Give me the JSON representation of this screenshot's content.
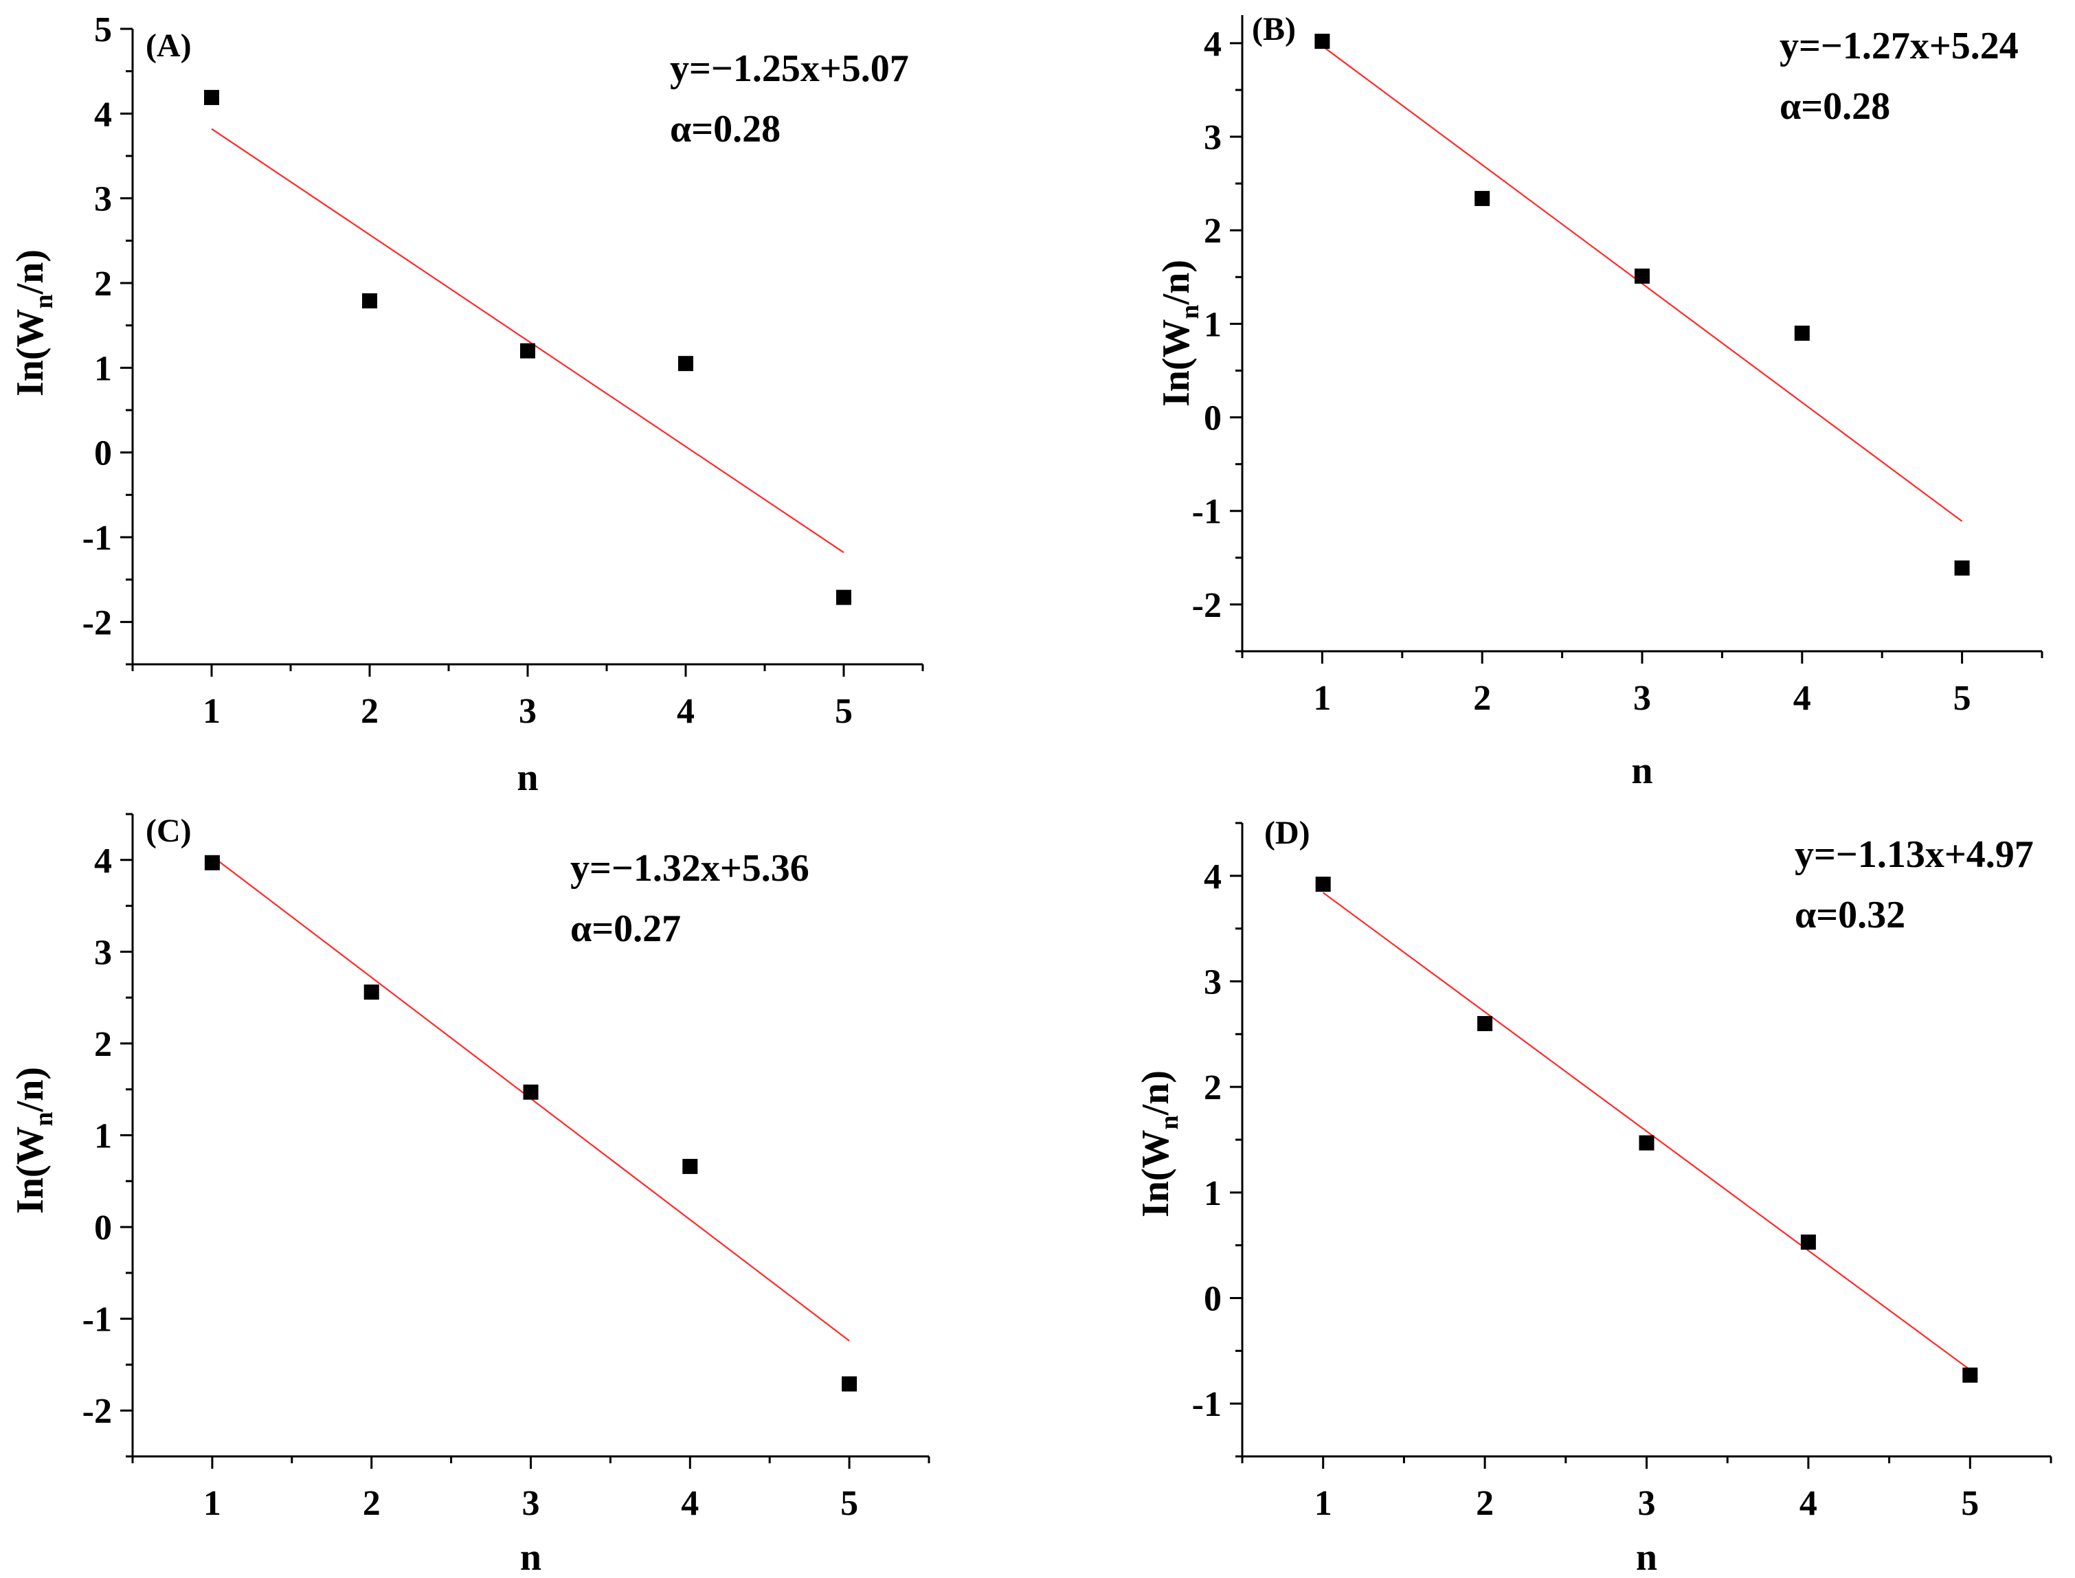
{
  "chart_data": [
    {
      "type": "scatter",
      "panel_label": "(A)",
      "xlabel": "n",
      "ylabel_main": "In(W",
      "ylabel_sub": "n",
      "ylabel_tail": "/n)",
      "x": [
        1,
        2,
        3,
        4,
        5
      ],
      "y": [
        4.19,
        1.79,
        1.2,
        1.05,
        -1.71
      ],
      "fit": {
        "slope": -1.25,
        "intercept": 5.07,
        "x_range": [
          1,
          5
        ]
      },
      "annotation_lines": [
        "y=−1.25x+5.07",
        "α=0.28"
      ],
      "xlim": [
        0.5,
        5.5
      ],
      "ylim": [
        -2.5,
        5
      ],
      "xticks": [
        1,
        2,
        3,
        4,
        5
      ],
      "yticks": [
        -2,
        -1,
        0,
        1,
        2,
        3,
        4,
        5
      ],
      "grid": false,
      "marker_color": "#000000",
      "fit_color": "#ff2a2a"
    },
    {
      "type": "scatter",
      "panel_label": "(B)",
      "xlabel": "n",
      "ylabel_main": "In(W",
      "ylabel_sub": "n",
      "ylabel_tail": "/n)",
      "x": [
        1,
        2,
        3,
        4,
        5
      ],
      "y": [
        4.02,
        2.34,
        1.51,
        0.9,
        -1.61
      ],
      "fit": {
        "slope": -1.27,
        "intercept": 5.24,
        "x_range": [
          1,
          5
        ]
      },
      "annotation_lines": [
        "y=−1.27x+5.24",
        "α=0.28"
      ],
      "xlim": [
        0.5,
        5.5
      ],
      "ylim": [
        -2.5,
        4.3
      ],
      "xticks": [
        1,
        2,
        3,
        4,
        5
      ],
      "yticks": [
        -2,
        -1,
        0,
        1,
        2,
        3,
        4
      ],
      "grid": false,
      "marker_color": "#000000",
      "fit_color": "#ff2a2a"
    },
    {
      "type": "scatter",
      "panel_label": "(C)",
      "xlabel": "n",
      "ylabel_main": "In(W",
      "ylabel_sub": "n",
      "ylabel_tail": "/n)",
      "x": [
        1,
        2,
        3,
        4,
        5
      ],
      "y": [
        3.97,
        2.56,
        1.47,
        0.66,
        -1.71
      ],
      "fit": {
        "slope": -1.32,
        "intercept": 5.36,
        "x_range": [
          1,
          5
        ]
      },
      "annotation_lines": [
        "y=−1.32x+5.36",
        "α=0.27"
      ],
      "xlim": [
        0.5,
        5.5
      ],
      "ylim": [
        -2.5,
        4.5
      ],
      "xticks": [
        1,
        2,
        3,
        4,
        5
      ],
      "yticks": [
        -2,
        -1,
        0,
        1,
        2,
        3,
        4
      ],
      "grid": false,
      "marker_color": "#000000",
      "fit_color": "#ff2a2a"
    },
    {
      "type": "scatter",
      "panel_label": "(D)",
      "xlabel": "n",
      "ylabel_main": "In(W",
      "ylabel_sub": "n",
      "ylabel_tail": "/n)",
      "x": [
        1,
        2,
        3,
        4,
        5
      ],
      "y": [
        3.92,
        2.6,
        1.47,
        0.53,
        -0.73
      ],
      "fit": {
        "slope": -1.13,
        "intercept": 4.97,
        "x_range": [
          1,
          5
        ]
      },
      "annotation_lines": [
        "y=−1.13x+4.97",
        "α=0.32"
      ],
      "xlim": [
        0.5,
        5.5
      ],
      "ylim": [
        -1.5,
        4.5
      ],
      "xticks": [
        1,
        2,
        3,
        4,
        5
      ],
      "yticks": [
        -1,
        0,
        1,
        2,
        3,
        4
      ],
      "grid": false,
      "marker_color": "#000000",
      "fit_color": "#ff2a2a"
    }
  ]
}
